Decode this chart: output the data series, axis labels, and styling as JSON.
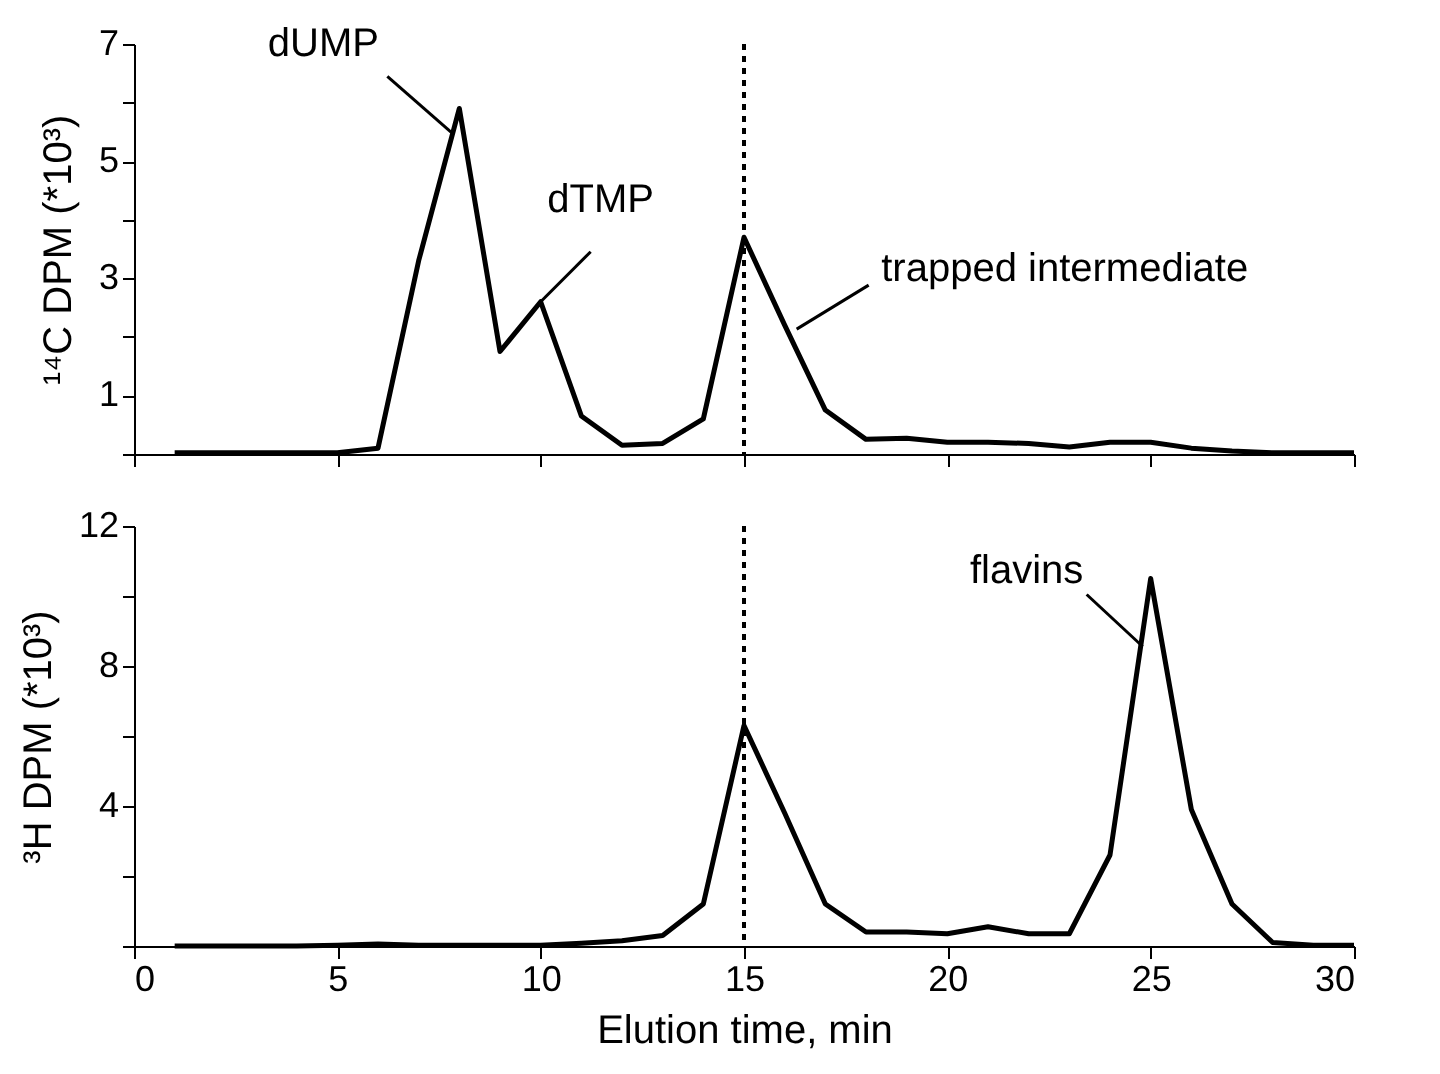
{
  "chart_data": [
    {
      "type": "line",
      "ylabel": "¹⁴C DPM (*10³)",
      "x": [
        1,
        2,
        3,
        4,
        5,
        6,
        7,
        8,
        9,
        10,
        11,
        12,
        13,
        14,
        15,
        16,
        17,
        18,
        19,
        20,
        21,
        22,
        23,
        24,
        25,
        26,
        27,
        28,
        29,
        30
      ],
      "series": [
        {
          "color": "#000000",
          "values": [
            0.02,
            0.02,
            0.02,
            0.02,
            0.02,
            0.1,
            3.3,
            5.9,
            1.75,
            2.6,
            0.65,
            0.15,
            0.18,
            0.6,
            3.7,
            2.2,
            0.75,
            0.25,
            0.27,
            0.2,
            0.2,
            0.18,
            0.12,
            0.2,
            0.2,
            0.1,
            0.05,
            0.02,
            0.02,
            0.02
          ]
        }
      ],
      "xlim": [
        0,
        30
      ],
      "xticks": [
        {
          "value": 0,
          "label": null
        },
        {
          "value": 5,
          "label": null
        },
        {
          "value": 10,
          "label": null
        },
        {
          "value": 15,
          "label": null
        },
        {
          "value": 20,
          "label": null
        },
        {
          "value": 25,
          "label": null
        },
        {
          "value": 30,
          "label": null
        }
      ],
      "ylim": [
        0,
        7
      ],
      "yticks": [
        {
          "value": 0,
          "label": null
        },
        1,
        {
          "value": 2,
          "label": null
        },
        3,
        {
          "value": 4,
          "label": null
        },
        5,
        {
          "value": 6,
          "label": null
        },
        7
      ],
      "tick_labels": "y",
      "grid": false,
      "marker": "none",
      "line_style": "solid",
      "ref_lines": [
        {
          "axis": "x",
          "value": 15,
          "line_style": "dotted",
          "color": "#000000"
        }
      ],
      "annotations": [
        {
          "text": "dUMP",
          "x": 8,
          "y": 5.9
        },
        {
          "text": "dTMP",
          "x": 10,
          "y": 2.6
        },
        {
          "text": "trapped intermediate",
          "x": 16,
          "y": 2.2
        }
      ]
    },
    {
      "type": "line",
      "xlabel": "Elution time, min",
      "ylabel": "³H DPM (*10³)",
      "x": [
        1,
        2,
        3,
        4,
        5,
        6,
        7,
        8,
        9,
        10,
        11,
        12,
        13,
        14,
        15,
        16,
        17,
        18,
        19,
        20,
        21,
        22,
        23,
        24,
        25,
        26,
        27,
        28,
        29,
        30
      ],
      "series": [
        {
          "color": "#000000",
          "values": [
            0,
            0,
            0,
            0,
            0.02,
            0.06,
            0.02,
            0.02,
            0.02,
            0.02,
            0.08,
            0.15,
            0.3,
            1.2,
            6.3,
            3.8,
            1.2,
            0.4,
            0.4,
            0.35,
            0.55,
            0.35,
            0.35,
            2.6,
            10.5,
            3.9,
            1.2,
            0.1,
            0.02,
            0.02
          ]
        }
      ],
      "xlim": [
        0,
        30
      ],
      "xticks": [
        0,
        5,
        10,
        15,
        20,
        25,
        30
      ],
      "ylim": [
        0,
        12
      ],
      "yticks": [
        {
          "value": 0,
          "label": null
        },
        {
          "value": 2,
          "label": null
        },
        4,
        {
          "value": 6,
          "label": null
        },
        8,
        {
          "value": 10,
          "label": null
        },
        12
      ],
      "grid": false,
      "marker": "none",
      "line_style": "solid",
      "ref_lines": [
        {
          "axis": "x",
          "value": 15,
          "line_style": "dotted",
          "color": "#000000"
        }
      ],
      "annotations": [
        {
          "text": "flavins",
          "x": 25,
          "y": 10.5
        }
      ]
    }
  ]
}
